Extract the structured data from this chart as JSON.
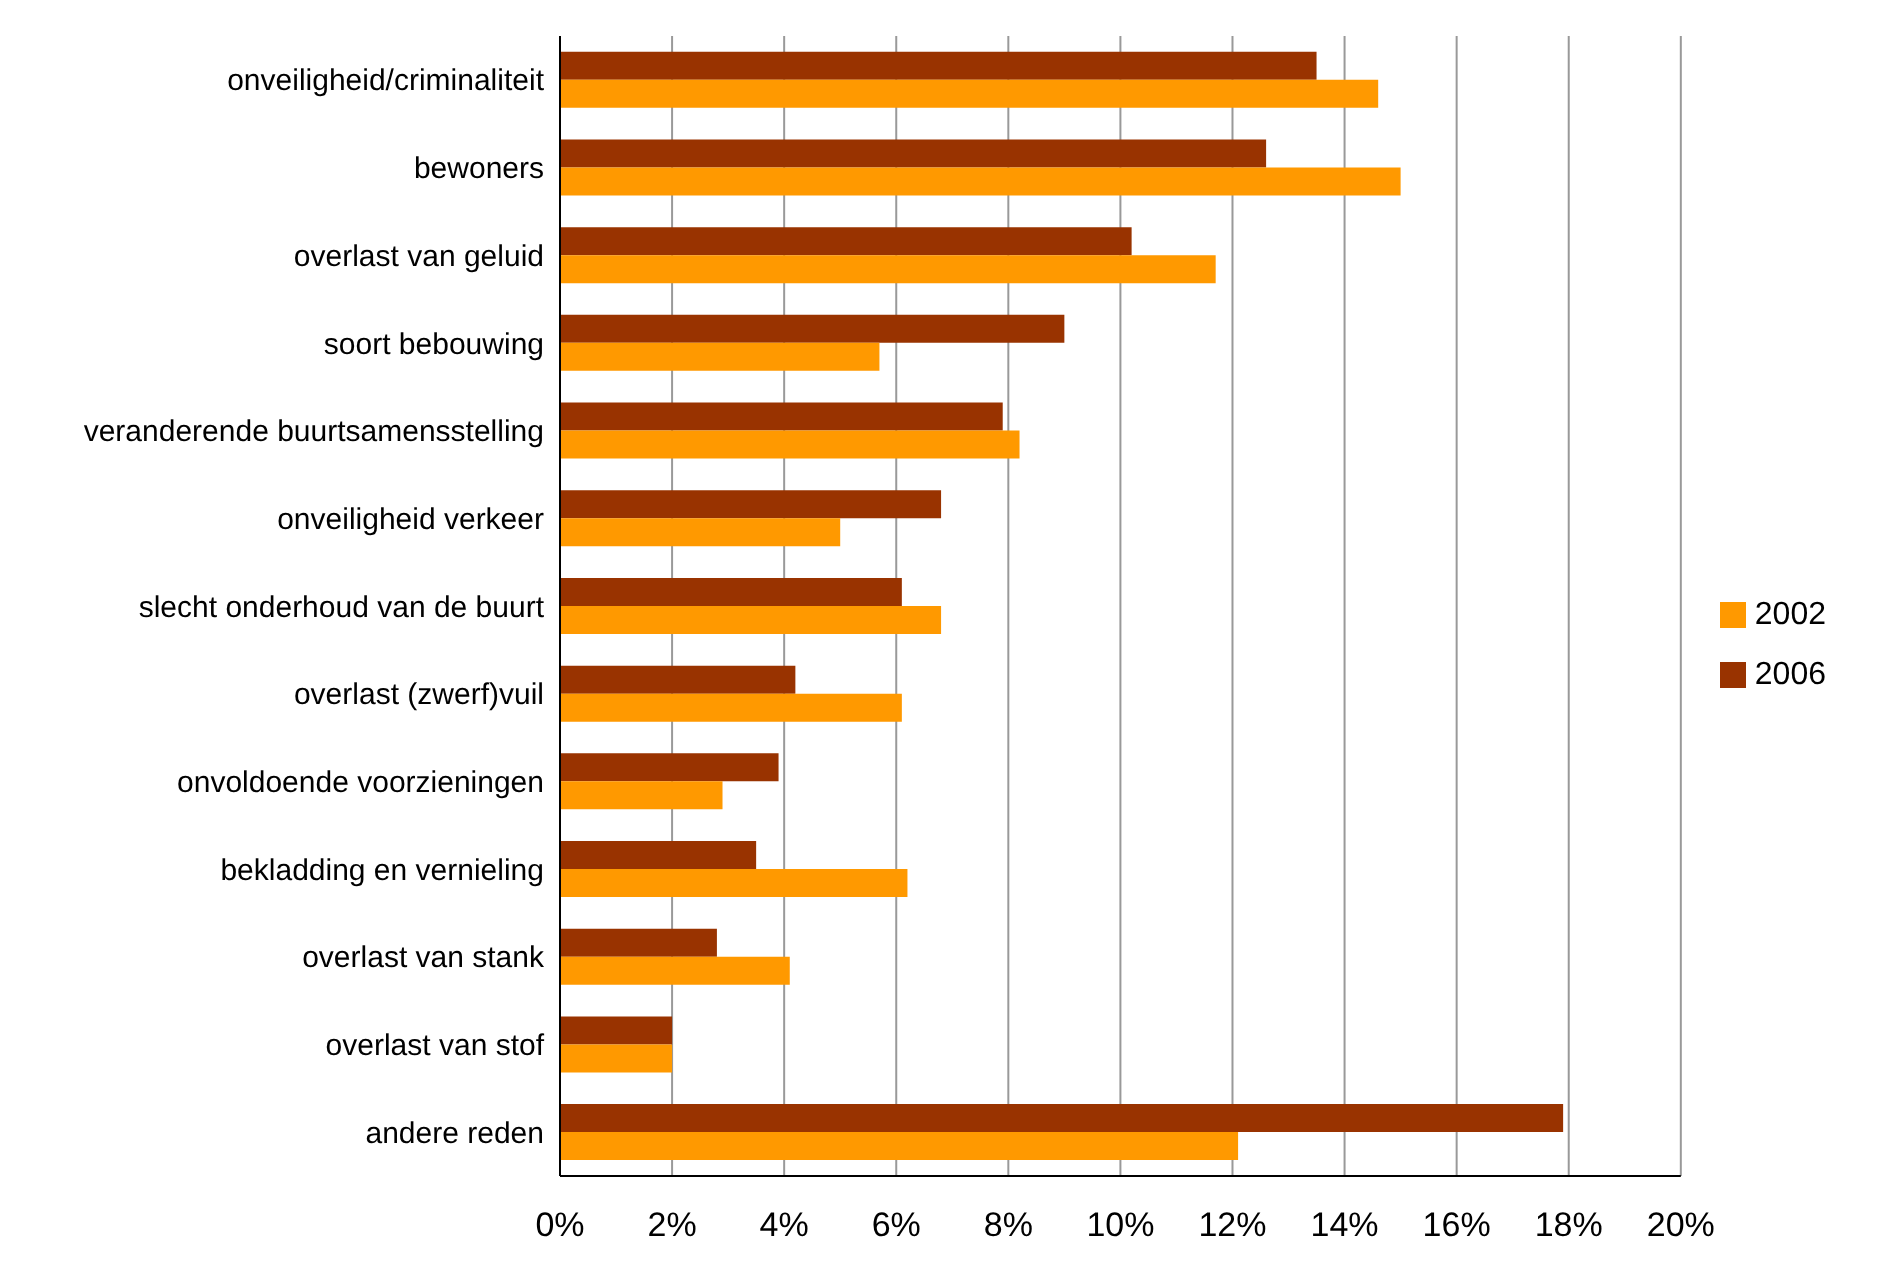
{
  "chart_data": {
    "type": "bar",
    "orientation": "horizontal",
    "categories": [
      "onveiligheid/criminaliteit",
      "bewoners",
      "overlast van geluid",
      "soort bebouwing",
      "veranderende buurtsamensstelling",
      "onveiligheid verkeer",
      "slecht onderhoud van de buurt",
      "overlast (zwerf)vuil",
      "onvoldoende voorzieningen",
      "bekladding en vernieling",
      "overlast van stank",
      "overlast van stof",
      "andere reden"
    ],
    "series": [
      {
        "name": "2006",
        "color": "#993300",
        "values": [
          13.5,
          12.6,
          10.2,
          9.0,
          7.9,
          6.8,
          6.1,
          4.2,
          3.9,
          3.5,
          2.8,
          2.0,
          17.9
        ]
      },
      {
        "name": "2002",
        "color": "#ff9900",
        "values": [
          14.6,
          15.0,
          11.7,
          5.7,
          8.2,
          5.0,
          6.8,
          6.1,
          2.9,
          6.2,
          4.1,
          2.0,
          12.1
        ]
      }
    ],
    "xlim": [
      0,
      20
    ],
    "xticks": [
      {
        "value": 0,
        "label": "0%"
      },
      {
        "value": 2,
        "label": "2%"
      },
      {
        "value": 4,
        "label": "4%"
      },
      {
        "value": 6,
        "label": "6%"
      },
      {
        "value": 8,
        "label": "8%"
      },
      {
        "value": 10,
        "label": "10%"
      },
      {
        "value": 12,
        "label": "12%"
      },
      {
        "value": 14,
        "label": "14%"
      },
      {
        "value": 16,
        "label": "16%"
      },
      {
        "value": 18,
        "label": "18%"
      },
      {
        "value": 20,
        "label": "20%"
      }
    ],
    "grid": "x",
    "legend": "right"
  }
}
